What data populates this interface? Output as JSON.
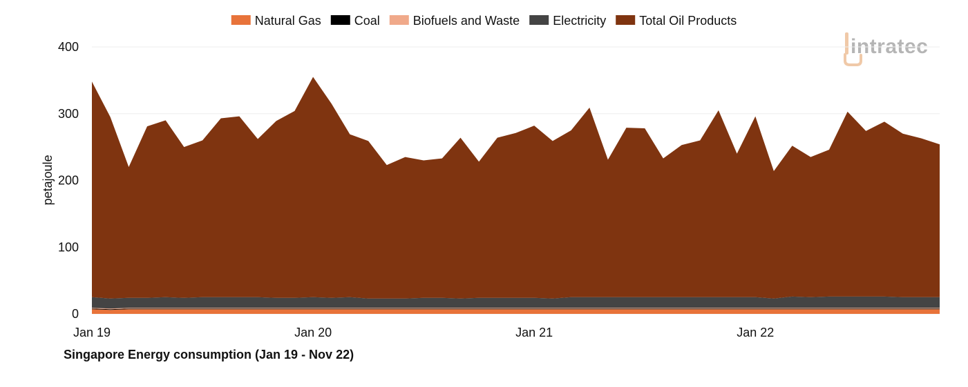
{
  "chart_data": {
    "type": "area",
    "stacked": true,
    "title": "Singapore Energy consumption (Jan 19 - Nov 22)",
    "ylabel": "petajoule",
    "xlabel": "",
    "ylim": [
      0,
      400
    ],
    "yticks": [
      "0",
      "100",
      "200",
      "300",
      "400"
    ],
    "xticks": [
      {
        "label": "Jan 19",
        "index": 0
      },
      {
        "label": "Jan 20",
        "index": 12
      },
      {
        "label": "Jan 21",
        "index": 24
      },
      {
        "label": "Jan 22",
        "index": 36
      }
    ],
    "grid": true,
    "legend_position": "top",
    "x": [
      "Jan 19",
      "Feb 19",
      "Mar 19",
      "Apr 19",
      "May 19",
      "Jun 19",
      "Jul 19",
      "Aug 19",
      "Sep 19",
      "Oct 19",
      "Nov 19",
      "Dec 19",
      "Jan 20",
      "Feb 20",
      "Mar 20",
      "Apr 20",
      "May 20",
      "Jun 20",
      "Jul 20",
      "Aug 20",
      "Sep 20",
      "Oct 20",
      "Nov 20",
      "Dec 20",
      "Jan 21",
      "Feb 21",
      "Mar 21",
      "Apr 21",
      "May 21",
      "Jun 21",
      "Jul 21",
      "Aug 21",
      "Sep 21",
      "Oct 21",
      "Nov 21",
      "Dec 21",
      "Jan 22",
      "Feb 22",
      "Mar 22",
      "Apr 22",
      "May 22",
      "Jun 22",
      "Jul 22",
      "Aug 22",
      "Sep 22",
      "Oct 22",
      "Nov 22"
    ],
    "series": [
      {
        "name": "Natural Gas",
        "color": "#e8733a",
        "values": [
          7,
          6,
          7,
          7,
          7,
          7,
          7,
          7,
          7,
          7,
          7,
          7,
          7,
          7,
          7,
          7,
          7,
          7,
          7,
          7,
          7,
          7,
          7,
          7,
          7,
          7,
          7,
          7,
          7,
          7,
          7,
          7,
          7,
          7,
          7,
          7,
          7,
          7,
          7,
          7,
          7,
          7,
          7,
          7,
          7,
          7,
          7
        ]
      },
      {
        "name": "Coal",
        "color": "#000000",
        "values": [
          1,
          1,
          1,
          1,
          1,
          1,
          1,
          1,
          1,
          1,
          1,
          1,
          1,
          1,
          1,
          1,
          1,
          1,
          1,
          1,
          1,
          1,
          1,
          1,
          1,
          1,
          1,
          1,
          1,
          1,
          1,
          1,
          1,
          1,
          1,
          1,
          1,
          1,
          1,
          1,
          1,
          1,
          1,
          1,
          1,
          1,
          1
        ]
      },
      {
        "name": "Biofuels and Waste",
        "color": "#f0a98a",
        "values": [
          1,
          1,
          1,
          1,
          1,
          1,
          1,
          1,
          1,
          1,
          1,
          1,
          1,
          1,
          1,
          1,
          1,
          1,
          1,
          1,
          1,
          1,
          1,
          1,
          1,
          1,
          1,
          1,
          1,
          1,
          1,
          1,
          1,
          1,
          1,
          1,
          1,
          1,
          1,
          1,
          1,
          1,
          1,
          1,
          1,
          1,
          1
        ]
      },
      {
        "name": "Electricity",
        "color": "#444444",
        "values": [
          16,
          15,
          15,
          15,
          16,
          15,
          16,
          16,
          16,
          16,
          15,
          15,
          16,
          15,
          16,
          14,
          14,
          14,
          15,
          15,
          14,
          15,
          15,
          15,
          15,
          14,
          16,
          16,
          16,
          16,
          16,
          16,
          16,
          16,
          16,
          16,
          16,
          14,
          17,
          16,
          17,
          17,
          17,
          17,
          16,
          16,
          16
        ]
      },
      {
        "name": "Total Oil Products",
        "color": "#7f3410",
        "values": [
          323,
          272,
          196,
          257,
          265,
          226,
          235,
          268,
          271,
          237,
          265,
          280,
          330,
          291,
          244,
          236,
          200,
          212,
          206,
          209,
          241,
          204,
          240,
          247,
          258,
          236,
          250,
          284,
          206,
          254,
          253,
          208,
          228,
          235,
          280,
          215,
          271,
          191,
          226,
          210,
          220,
          277,
          248,
          262,
          245,
          238,
          229
        ]
      }
    ]
  },
  "branding": {
    "logo_text": "intratec",
    "logo_color": "#b5b5b5",
    "logo_accent_color": "#f0c9a8"
  }
}
